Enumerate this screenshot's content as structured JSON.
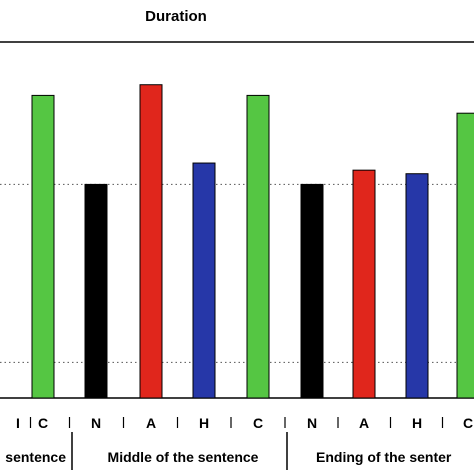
{
  "chart_data": {
    "type": "bar",
    "title": "Duration",
    "colors": {
      "N": "#000000",
      "A": "#e0261c",
      "H": "#2637a8",
      "C": "#55c643"
    },
    "groups": [
      {
        "label": "sentence",
        "visible_label": "sentence",
        "bars": [
          {
            "code": "I",
            "value": null
          },
          {
            "code": "C",
            "value": 1.25
          }
        ]
      },
      {
        "label": "Middle of the sentence",
        "bars": [
          {
            "code": "N",
            "value": 1.0
          },
          {
            "code": "A",
            "value": 1.28
          },
          {
            "code": "H",
            "value": 1.06
          },
          {
            "code": "C",
            "value": 1.25
          }
        ]
      },
      {
        "label": "Ending of the senter",
        "bars": [
          {
            "code": "N",
            "value": 1.0
          },
          {
            "code": "A",
            "value": 1.04
          },
          {
            "code": "H",
            "value": 1.03
          },
          {
            "code": "C",
            "value": 1.2
          }
        ]
      }
    ],
    "ylim": [
      0.4,
      1.4
    ],
    "gridlines": [
      0.5,
      1.0
    ],
    "grid": true
  }
}
